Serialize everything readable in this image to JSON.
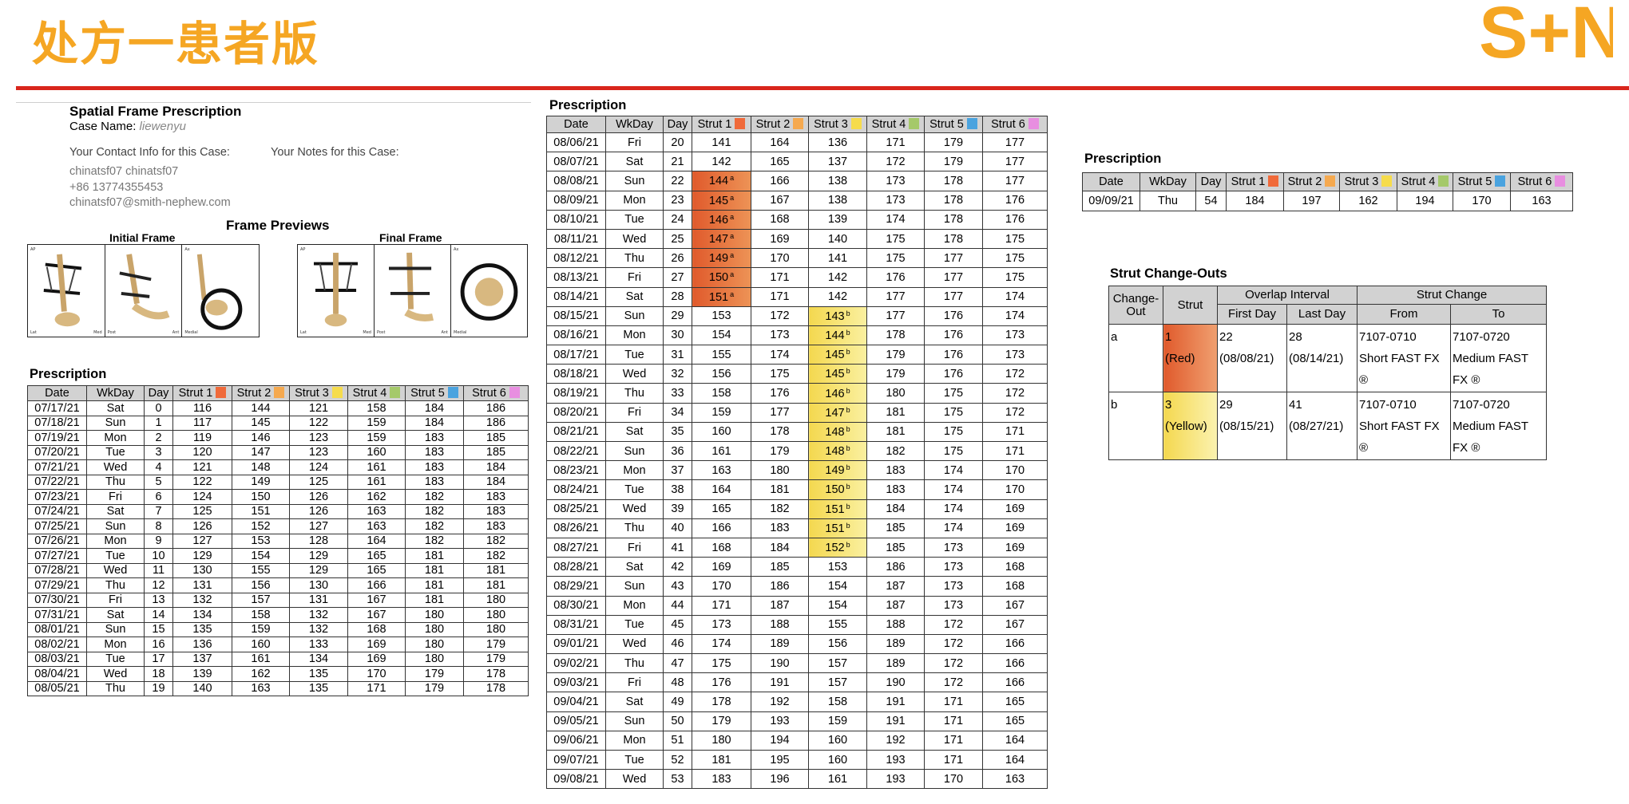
{
  "slide": {
    "title": "处方一患者版",
    "logo": {
      "text": "S+N",
      "color": "#f5a623",
      "icon": "smith-nephew-logo"
    },
    "rule_color": "#d9261c"
  },
  "info": {
    "title": "Spatial Frame Prescription",
    "case_label": "Case Name:",
    "case_name": "liewenyu",
    "contact_heading": "Your Contact Info for this Case:",
    "notes_heading": "Your Notes for this Case:",
    "contact_lines": [
      "chinatsf07 chinatsf07",
      "+86 13774355453",
      "chinatsf07@smith-nephew.com"
    ]
  },
  "previews": {
    "title": "Frame Previews",
    "initial_label": "Initial Frame",
    "final_label": "Final Frame",
    "view_labels": {
      "ap": "AP",
      "lat": "Lat",
      "axial": "Ax",
      "med": "Med",
      "post": "Post",
      "ant": "Ant",
      "medial": "Medial"
    }
  },
  "strut_colors": [
    "#f06a3a",
    "#f5a94f",
    "#f6dc4c",
    "#a5c96a",
    "#4aa3df",
    "#e88ee0"
  ],
  "table_headers": [
    "Date",
    "WkDay",
    "Day",
    "Strut 1",
    "Strut 2",
    "Strut 3",
    "Strut 4",
    "Strut 5",
    "Strut 6"
  ],
  "prescription_left": {
    "title": "Prescription",
    "rows": [
      [
        "07/17/21",
        "Sat",
        "0",
        "116",
        "144",
        "121",
        "158",
        "184",
        "186"
      ],
      [
        "07/18/21",
        "Sun",
        "1",
        "117",
        "145",
        "122",
        "159",
        "184",
        "186"
      ],
      [
        "07/19/21",
        "Mon",
        "2",
        "119",
        "146",
        "123",
        "159",
        "183",
        "185"
      ],
      [
        "07/20/21",
        "Tue",
        "3",
        "120",
        "147",
        "123",
        "160",
        "183",
        "185"
      ],
      [
        "07/21/21",
        "Wed",
        "4",
        "121",
        "148",
        "124",
        "161",
        "183",
        "184"
      ],
      [
        "07/22/21",
        "Thu",
        "5",
        "122",
        "149",
        "125",
        "161",
        "183",
        "184"
      ],
      [
        "07/23/21",
        "Fri",
        "6",
        "124",
        "150",
        "126",
        "162",
        "182",
        "183"
      ],
      [
        "07/24/21",
        "Sat",
        "7",
        "125",
        "151",
        "126",
        "163",
        "182",
        "183"
      ],
      [
        "07/25/21",
        "Sun",
        "8",
        "126",
        "152",
        "127",
        "163",
        "182",
        "183"
      ],
      [
        "07/26/21",
        "Mon",
        "9",
        "127",
        "153",
        "128",
        "164",
        "182",
        "182"
      ],
      [
        "07/27/21",
        "Tue",
        "10",
        "129",
        "154",
        "129",
        "165",
        "181",
        "182"
      ],
      [
        "07/28/21",
        "Wed",
        "11",
        "130",
        "155",
        "129",
        "165",
        "181",
        "181"
      ],
      [
        "07/29/21",
        "Thu",
        "12",
        "131",
        "156",
        "130",
        "166",
        "181",
        "181"
      ],
      [
        "07/30/21",
        "Fri",
        "13",
        "132",
        "157",
        "131",
        "167",
        "181",
        "180"
      ],
      [
        "07/31/21",
        "Sat",
        "14",
        "134",
        "158",
        "132",
        "167",
        "180",
        "180"
      ],
      [
        "08/01/21",
        "Sun",
        "15",
        "135",
        "159",
        "132",
        "168",
        "180",
        "180"
      ],
      [
        "08/02/21",
        "Mon",
        "16",
        "136",
        "160",
        "133",
        "169",
        "180",
        "179"
      ],
      [
        "08/03/21",
        "Tue",
        "17",
        "137",
        "161",
        "134",
        "169",
        "180",
        "179"
      ],
      [
        "08/04/21",
        "Wed",
        "18",
        "139",
        "162",
        "135",
        "170",
        "179",
        "178"
      ],
      [
        "08/05/21",
        "Thu",
        "19",
        "140",
        "163",
        "135",
        "171",
        "179",
        "178"
      ]
    ]
  },
  "prescription_middle": {
    "title": "Prescription",
    "rows": [
      [
        "08/06/21",
        "Fri",
        "20",
        "141",
        "164",
        "136",
        "171",
        "179",
        "177"
      ],
      [
        "08/07/21",
        "Sat",
        "21",
        "142",
        "165",
        "137",
        "172",
        "179",
        "177"
      ],
      [
        "08/08/21",
        "Sun",
        "22",
        "144",
        "166",
        "138",
        "173",
        "178",
        "177"
      ],
      [
        "08/09/21",
        "Mon",
        "23",
        "145",
        "167",
        "138",
        "173",
        "178",
        "176"
      ],
      [
        "08/10/21",
        "Tue",
        "24",
        "146",
        "168",
        "139",
        "174",
        "178",
        "176"
      ],
      [
        "08/11/21",
        "Wed",
        "25",
        "147",
        "169",
        "140",
        "175",
        "178",
        "175"
      ],
      [
        "08/12/21",
        "Thu",
        "26",
        "149",
        "170",
        "141",
        "175",
        "177",
        "175"
      ],
      [
        "08/13/21",
        "Fri",
        "27",
        "150",
        "171",
        "142",
        "176",
        "177",
        "175"
      ],
      [
        "08/14/21",
        "Sat",
        "28",
        "151",
        "171",
        "142",
        "177",
        "177",
        "174"
      ],
      [
        "08/15/21",
        "Sun",
        "29",
        "153",
        "172",
        "143",
        "177",
        "176",
        "174"
      ],
      [
        "08/16/21",
        "Mon",
        "30",
        "154",
        "173",
        "144",
        "178",
        "176",
        "173"
      ],
      [
        "08/17/21",
        "Tue",
        "31",
        "155",
        "174",
        "145",
        "179",
        "176",
        "173"
      ],
      [
        "08/18/21",
        "Wed",
        "32",
        "156",
        "175",
        "145",
        "179",
        "176",
        "172"
      ],
      [
        "08/19/21",
        "Thu",
        "33",
        "158",
        "176",
        "146",
        "180",
        "175",
        "172"
      ],
      [
        "08/20/21",
        "Fri",
        "34",
        "159",
        "177",
        "147",
        "181",
        "175",
        "172"
      ],
      [
        "08/21/21",
        "Sat",
        "35",
        "160",
        "178",
        "148",
        "181",
        "175",
        "171"
      ],
      [
        "08/22/21",
        "Sun",
        "36",
        "161",
        "179",
        "148",
        "182",
        "175",
        "171"
      ],
      [
        "08/23/21",
        "Mon",
        "37",
        "163",
        "180",
        "149",
        "183",
        "174",
        "170"
      ],
      [
        "08/24/21",
        "Tue",
        "38",
        "164",
        "181",
        "150",
        "183",
        "174",
        "170"
      ],
      [
        "08/25/21",
        "Wed",
        "39",
        "165",
        "182",
        "151",
        "184",
        "174",
        "169"
      ],
      [
        "08/26/21",
        "Thu",
        "40",
        "166",
        "183",
        "151",
        "185",
        "174",
        "169"
      ],
      [
        "08/27/21",
        "Fri",
        "41",
        "168",
        "184",
        "152",
        "185",
        "173",
        "169"
      ],
      [
        "08/28/21",
        "Sat",
        "42",
        "169",
        "185",
        "153",
        "186",
        "173",
        "168"
      ],
      [
        "08/29/21",
        "Sun",
        "43",
        "170",
        "186",
        "154",
        "187",
        "173",
        "168"
      ],
      [
        "08/30/21",
        "Mon",
        "44",
        "171",
        "187",
        "154",
        "187",
        "173",
        "167"
      ],
      [
        "08/31/21",
        "Tue",
        "45",
        "173",
        "188",
        "155",
        "188",
        "172",
        "167"
      ],
      [
        "09/01/21",
        "Wed",
        "46",
        "174",
        "189",
        "156",
        "189",
        "172",
        "166"
      ],
      [
        "09/02/21",
        "Thu",
        "47",
        "175",
        "190",
        "157",
        "189",
        "172",
        "166"
      ],
      [
        "09/03/21",
        "Fri",
        "48",
        "176",
        "191",
        "157",
        "190",
        "172",
        "166"
      ],
      [
        "09/04/21",
        "Sat",
        "49",
        "178",
        "192",
        "158",
        "191",
        "171",
        "165"
      ],
      [
        "09/05/21",
        "Sun",
        "50",
        "179",
        "193",
        "159",
        "191",
        "171",
        "165"
      ],
      [
        "09/06/21",
        "Mon",
        "51",
        "180",
        "194",
        "160",
        "192",
        "171",
        "164"
      ],
      [
        "09/07/21",
        "Tue",
        "52",
        "181",
        "195",
        "160",
        "193",
        "171",
        "164"
      ],
      [
        "09/08/21",
        "Wed",
        "53",
        "183",
        "196",
        "161",
        "193",
        "170",
        "163"
      ]
    ],
    "strut1_change_rows": [
      "08/08/21",
      "08/09/21",
      "08/10/21",
      "08/11/21",
      "08/12/21",
      "08/13/21",
      "08/14/21"
    ],
    "strut1_change_mark": "a",
    "strut3_change_rows": [
      "08/15/21",
      "08/16/21",
      "08/17/21",
      "08/18/21",
      "08/19/21",
      "08/20/21",
      "08/21/21",
      "08/22/21",
      "08/23/21",
      "08/24/21",
      "08/25/21",
      "08/26/21",
      "08/27/21"
    ],
    "strut3_change_mark": "b"
  },
  "prescription_right": {
    "title": "Prescription",
    "rows": [
      [
        "09/09/21",
        "Thu",
        "54",
        "184",
        "197",
        "162",
        "194",
        "170",
        "163"
      ]
    ]
  },
  "changeouts": {
    "title": "Strut Change-Outs",
    "headers": {
      "change_out": "Change-Out",
      "strut": "Strut",
      "overlap": "Overlap Interval",
      "first_day": "First Day",
      "last_day": "Last Day",
      "strut_change": "Strut Change",
      "from": "From",
      "to": "To"
    },
    "rows": [
      {
        "id": "a",
        "strut_num": "1",
        "strut_color": "(Red)",
        "first_day": "22",
        "first_date": "(08/08/21)",
        "last_day": "28",
        "last_date": "(08/14/21)",
        "from_code": "7107-0710",
        "from_desc": "Short FAST FX ®",
        "to_code": "7107-0720",
        "to_desc": "Medium FAST FX ®"
      },
      {
        "id": "b",
        "strut_num": "3",
        "strut_color": "(Yellow)",
        "first_day": "29",
        "first_date": "(08/15/21)",
        "last_day": "41",
        "last_date": "(08/27/21)",
        "from_code": "7107-0710",
        "from_desc": "Short FAST FX ®",
        "to_code": "7107-0720",
        "to_desc": "Medium FAST FX ®"
      }
    ]
  }
}
